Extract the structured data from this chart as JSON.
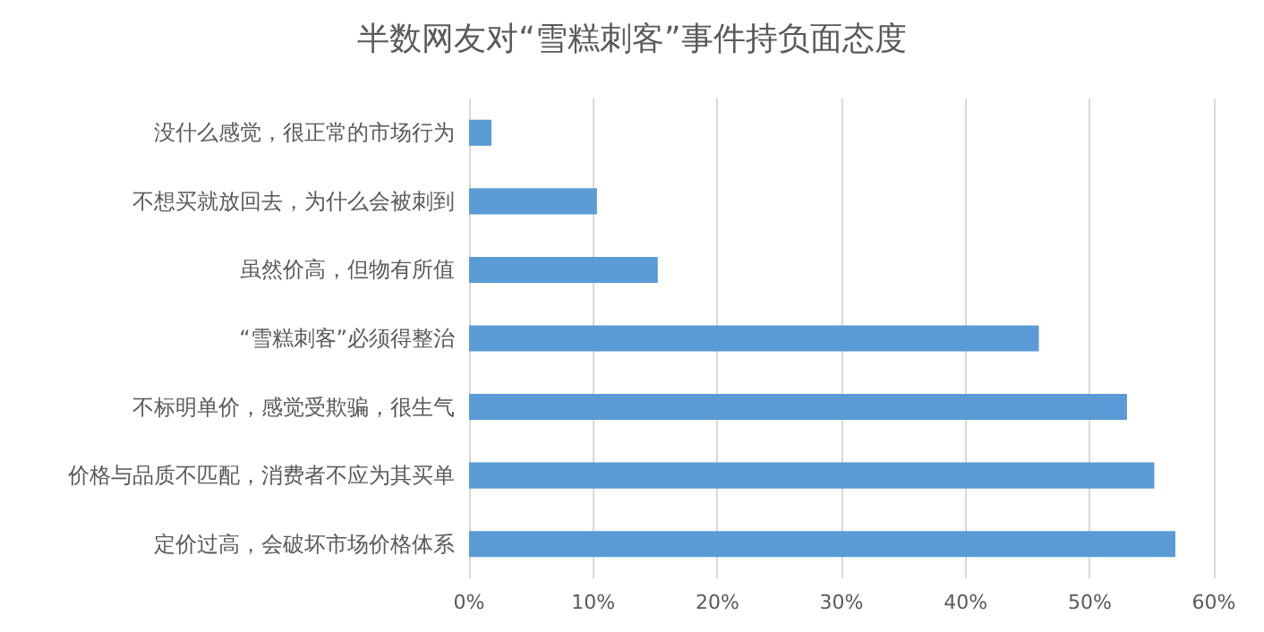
{
  "chart_data": {
    "type": "bar",
    "orientation": "horizontal",
    "title": "半数网友对“雪糕刺客”事件持负面态度",
    "categories": [
      "没什么感觉，很正常的市场行为",
      "不想买就放回去，为什么会被刺到",
      "虽然价高，但物有所值",
      "“雪糕刺客”必须得整治",
      "不标明单价，感觉受欺骗，很生气",
      "价格与品质不匹配，消费者不应为其买单",
      "定价过高，会破坏市场价格体系"
    ],
    "values": [
      1.8,
      10.3,
      15.2,
      45.9,
      53.0,
      55.2,
      56.9
    ],
    "color": "#5b9bd5",
    "xlim": [
      0,
      60
    ],
    "xticks": [
      {
        "value": 0,
        "label": "0%"
      },
      {
        "value": 10,
        "label": "10%"
      },
      {
        "value": 20,
        "label": "20%"
      },
      {
        "value": 30,
        "label": "30%"
      },
      {
        "value": 40,
        "label": "40%"
      },
      {
        "value": 50,
        "label": "50%"
      },
      {
        "value": 60,
        "label": "60%"
      }
    ],
    "grid": "x"
  }
}
